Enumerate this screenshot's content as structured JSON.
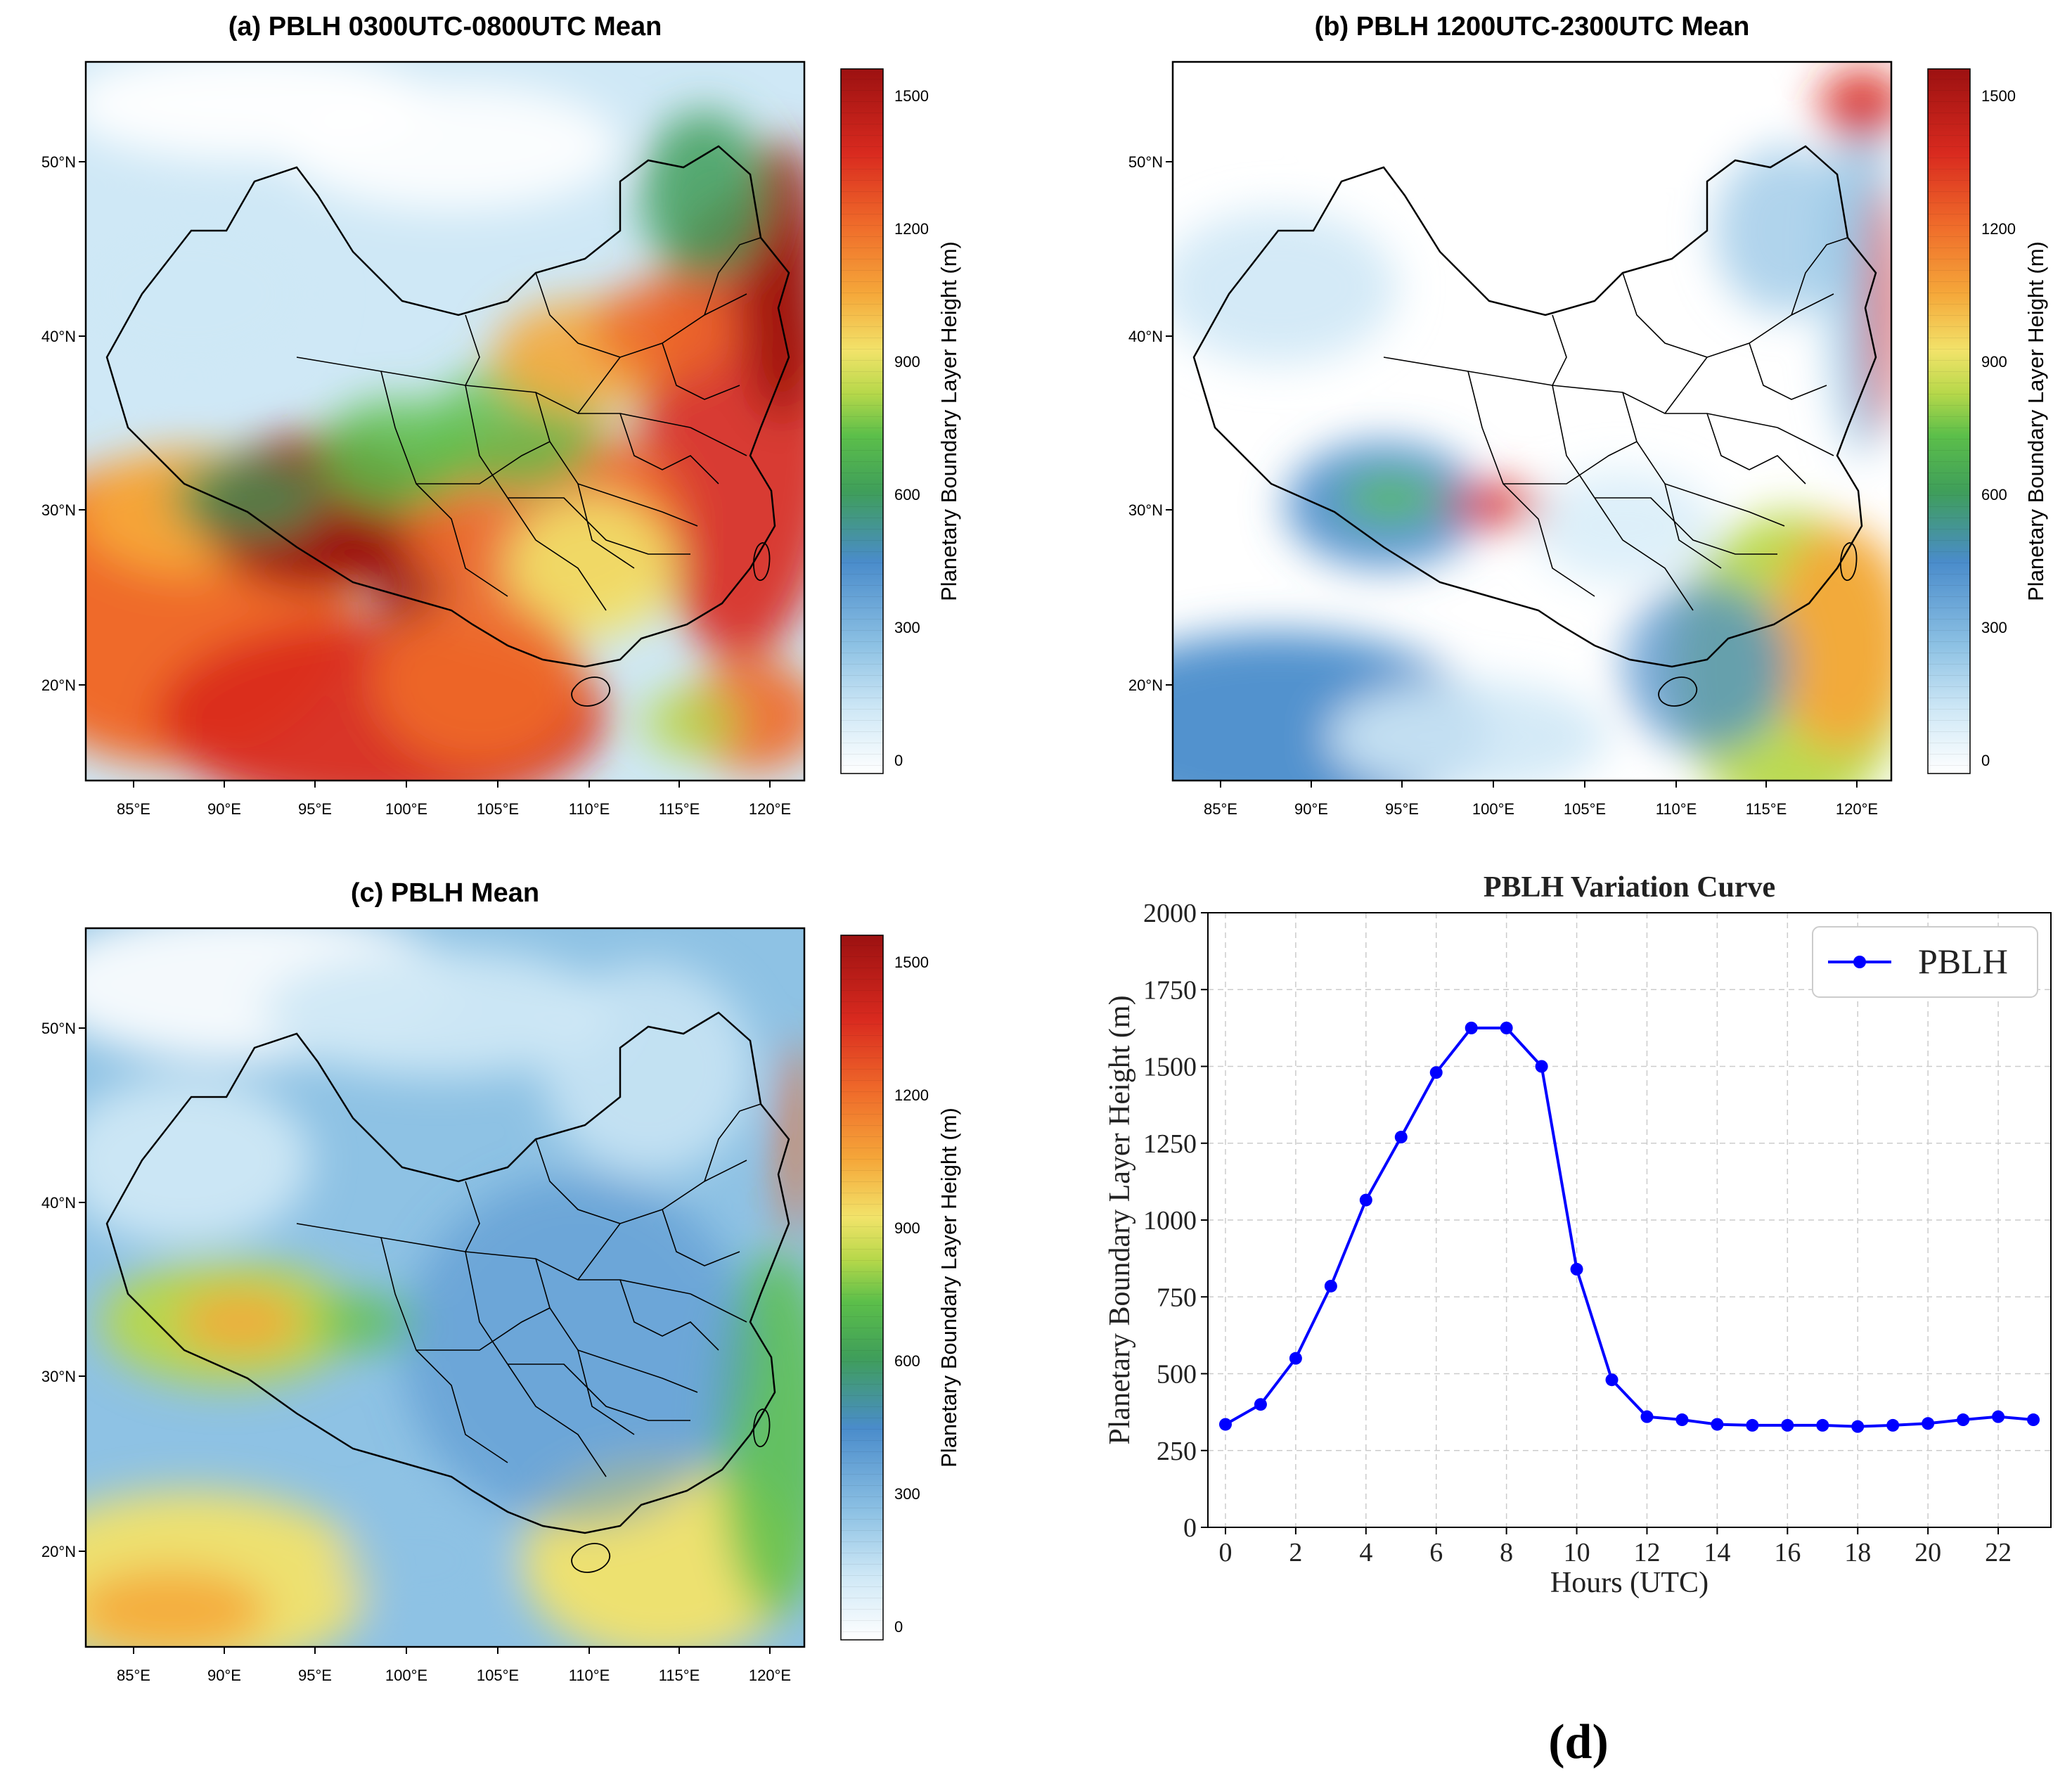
{
  "panels": [
    {
      "id": "a",
      "title": "(a) PBLH 0300UTC-0800UTC Mean",
      "colorbar_label": "Planetary Boundary Layer Height (m)",
      "colorbar_ticks": [
        "0",
        "300",
        "600",
        "900",
        "1200",
        "1500"
      ],
      "lat_labels": [
        "50°N",
        "40°N",
        "30°N",
        "20°N"
      ],
      "lon_labels": [
        "85°E",
        "90°E",
        "95°E",
        "100°E",
        "105°E",
        "110°E",
        "115°E",
        "120°E"
      ],
      "pattern": "day"
    },
    {
      "id": "b",
      "title": "(b) PBLH 1200UTC-2300UTC Mean",
      "colorbar_label": "Planetary Boundary Layer Height (m)",
      "colorbar_ticks": [
        "0",
        "300",
        "600",
        "900",
        "1200",
        "1500"
      ],
      "lat_labels": [
        "50°N",
        "40°N",
        "30°N",
        "20°N"
      ],
      "lon_labels": [
        "85°E",
        "90°E",
        "95°E",
        "100°E",
        "105°E",
        "110°E",
        "115°E",
        "120°E"
      ],
      "pattern": "night"
    },
    {
      "id": "c",
      "title": "(c) PBLH Mean",
      "colorbar_label": "Planetary Boundary Layer Height (m)",
      "colorbar_ticks": [
        "0",
        "300",
        "600",
        "900",
        "1200",
        "1500"
      ],
      "lat_labels": [
        "50°N",
        "40°N",
        "30°N",
        "20°N"
      ],
      "lon_labels": [
        "85°E",
        "90°E",
        "95°E",
        "100°E",
        "105°E",
        "110°E",
        "115°E",
        "120°E"
      ],
      "pattern": "mean"
    }
  ],
  "colors": {
    "line": "#0000ff",
    "grid": "#cccccc",
    "colormap": [
      "#ffffff",
      "#cfe8f6",
      "#8ec2e4",
      "#4a8ccb",
      "#3f9e5a",
      "#5cbf4a",
      "#b7d84a",
      "#f2e36a",
      "#f5a83a",
      "#ef6a2a",
      "#d92a1f",
      "#9c1111"
    ]
  },
  "chart_data": {
    "type": "line",
    "title": "PBLH Variation Curve",
    "xlabel": "Hours (UTC)",
    "ylabel": "Planetary Boundary Layer Height (m)",
    "x": [
      0,
      1,
      2,
      3,
      4,
      5,
      6,
      7,
      8,
      9,
      10,
      11,
      12,
      13,
      14,
      15,
      16,
      17,
      18,
      19,
      20,
      21,
      22,
      23
    ],
    "series": [
      {
        "name": "PBLH",
        "values": [
          335,
          400,
          550,
          785,
          1065,
          1270,
          1480,
          1625,
          1625,
          1500,
          840,
          480,
          360,
          350,
          335,
          332,
          332,
          332,
          328,
          332,
          338,
          350,
          360,
          350
        ]
      }
    ],
    "xlim": [
      -0.5,
      23.5
    ],
    "ylim": [
      0,
      2000
    ],
    "xticks": [
      "0",
      "2",
      "4",
      "6",
      "8",
      "10",
      "12",
      "14",
      "16",
      "18",
      "20",
      "22"
    ],
    "yticks": [
      "0",
      "250",
      "500",
      "750",
      "1000",
      "1250",
      "1500",
      "1750",
      "2000"
    ],
    "grid": true,
    "legend_position": "top-right"
  },
  "panel_d_label": "(d)"
}
